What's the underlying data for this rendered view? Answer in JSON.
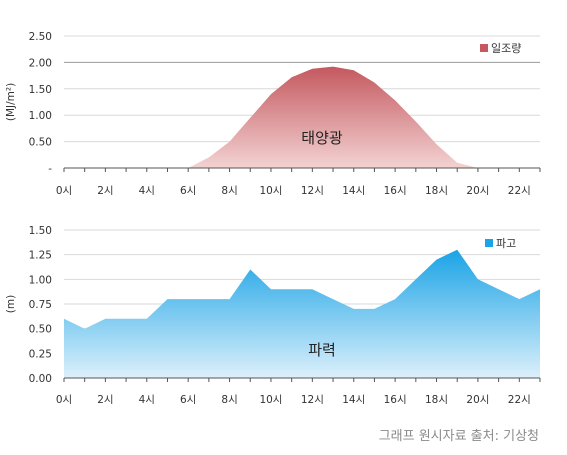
{
  "source_text": "그래프 원시자료 출처:  기상청",
  "chart_data": [
    {
      "type": "area",
      "ylabel": "(MJ/m²)",
      "ylim": [
        0,
        2.5
      ],
      "yticks": [
        "-",
        "0.50",
        "1.00",
        "1.50",
        "2.00",
        "2.50"
      ],
      "xticks": [
        "0시",
        "2시",
        "4시",
        "6시",
        "8시",
        "10시",
        "12시",
        "14시",
        "16시",
        "18시",
        "20시",
        "22시"
      ],
      "grid": true,
      "legend_position": "top-right",
      "annotation": "태양광",
      "color_top": "#c4595f",
      "color_bottom": "#f3d2d2",
      "series": [
        {
          "name": "일조량",
          "x": [
            0,
            1,
            2,
            3,
            4,
            5,
            6,
            7,
            8,
            9,
            10,
            11,
            12,
            13,
            14,
            15,
            16,
            17,
            18,
            19,
            20,
            21,
            22,
            23
          ],
          "values": [
            0,
            0,
            0,
            0,
            0,
            0,
            0,
            0.2,
            0.5,
            0.95,
            1.4,
            1.72,
            1.88,
            1.92,
            1.85,
            1.62,
            1.28,
            0.88,
            0.45,
            0.1,
            0,
            0,
            0,
            0
          ]
        }
      ]
    },
    {
      "type": "area",
      "ylabel": "(m)",
      "ylim": [
        0,
        1.5
      ],
      "yticks": [
        "0.00",
        "0.25",
        "0.50",
        "0.75",
        "1.00",
        "1.25",
        "1.50"
      ],
      "xticks": [
        "0시",
        "2시",
        "4시",
        "6시",
        "8시",
        "10시",
        "12시",
        "14시",
        "16시",
        "18시",
        "20시",
        "22시"
      ],
      "grid": true,
      "legend_position": "top-right",
      "annotation": "파력",
      "color_top": "#1aa3e6",
      "color_bottom": "#dcf0fb",
      "series": [
        {
          "name": "파고",
          "x": [
            0,
            1,
            2,
            3,
            4,
            5,
            6,
            7,
            8,
            9,
            10,
            11,
            12,
            13,
            14,
            15,
            16,
            17,
            18,
            19,
            20,
            21,
            22,
            23
          ],
          "values": [
            0.6,
            0.5,
            0.6,
            0.6,
            0.6,
            0.8,
            0.8,
            0.8,
            0.8,
            1.1,
            0.9,
            0.9,
            0.9,
            0.8,
            0.7,
            0.7,
            0.8,
            1.0,
            1.2,
            1.3,
            1.0,
            0.9,
            0.8,
            0.9
          ]
        }
      ]
    }
  ]
}
